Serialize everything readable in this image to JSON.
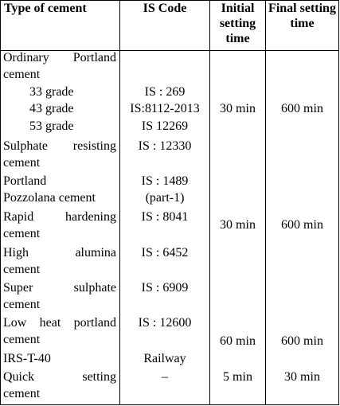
{
  "table": {
    "header": [
      "Type of cement",
      "IS Code",
      "Initial setting time",
      "Final setting time"
    ],
    "rows": [
      {
        "type": [
          "Ordinary Portland",
          "cement"
        ]
      },
      {
        "type": [
          "33 grade"
        ],
        "code": [
          "IS : 269"
        ]
      },
      {
        "type": [
          "43 grade"
        ],
        "code": [
          "IS:8112-2013"
        ],
        "initial": "30 min",
        "final": "600 min"
      },
      {
        "type": [
          "53 grade"
        ],
        "code": [
          "IS 12269"
        ]
      },
      {
        "type": [
          "Sulphate resisting",
          "cement"
        ],
        "code": [
          "IS : 12330"
        ]
      },
      {
        "type": [
          "Portland",
          "Pozzolana cement"
        ],
        "code": [
          "IS : 1489",
          "(part-1)"
        ]
      },
      {
        "type": [
          "Rapid hardening",
          "cement"
        ],
        "code": [
          "IS : 8041"
        ],
        "initial": "30 min",
        "final": "600 min"
      },
      {
        "type": [
          "High alumina",
          "cement"
        ],
        "code": [
          "IS : 6452"
        ]
      },
      {
        "type": [
          "Super sulphate",
          "cement"
        ],
        "code": [
          "IS : 6909"
        ]
      },
      {
        "type": [
          "Low heat portland",
          "cement"
        ],
        "code": [
          "IS : 12600"
        ],
        "initial": "60 min",
        "final": "600 min"
      },
      {
        "type": [
          "IRS-T-40"
        ],
        "code": [
          "Railway"
        ]
      },
      {
        "type": [
          "Quick setting",
          "cement"
        ],
        "code": [
          "–"
        ],
        "initial": "5 min",
        "final": "30 min"
      }
    ]
  }
}
